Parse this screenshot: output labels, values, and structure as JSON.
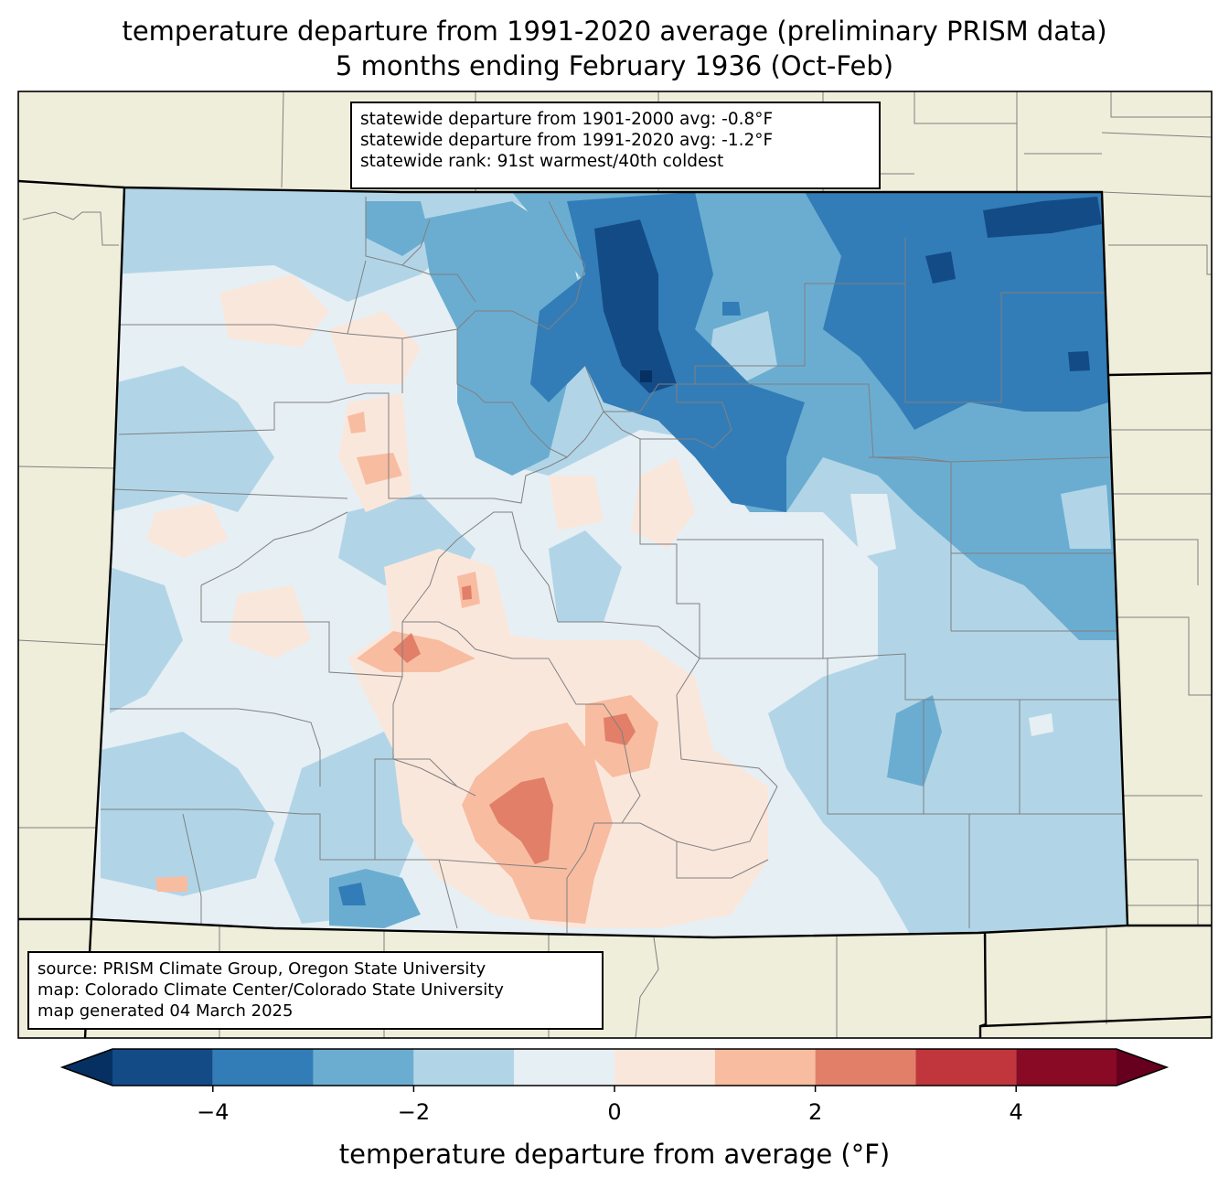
{
  "title": {
    "line1": "temperature departure from 1991-2020 average (preliminary PRISM data)",
    "line2": "5 months ending February 1936 (Oct-Feb)"
  },
  "stats": {
    "line1": "statewide departure from 1901-2000 avg: -0.8°F",
    "line2": "statewide departure from 1991-2020 avg: -1.2°F",
    "line3": "statewide rank: 91st warmest/40th coldest"
  },
  "source": {
    "line1": "source: PRISM Climate Group, Oregon State University",
    "line2": "map: Colorado Climate Center/Colorado State University",
    "line3": "map generated 04 March 2025"
  },
  "colorbar": {
    "label": "temperature departure from average (°F)",
    "ticks": [
      {
        "value": -4,
        "label": "−4"
      },
      {
        "value": -2,
        "label": "−2"
      },
      {
        "value": 0,
        "label": "0"
      },
      {
        "value": 2,
        "label": "2"
      },
      {
        "value": 4,
        "label": "4"
      }
    ],
    "bins": [
      {
        "from": -6,
        "to": -5,
        "color": "#053061"
      },
      {
        "from": -5,
        "to": -4,
        "color": "#134b87"
      },
      {
        "from": -4,
        "to": -3,
        "color": "#327db7"
      },
      {
        "from": -3,
        "to": -2,
        "color": "#6badd1"
      },
      {
        "from": -2,
        "to": -1,
        "color": "#b1d5e7"
      },
      {
        "from": -1,
        "to": 0,
        "color": "#e6eff4"
      },
      {
        "from": 0,
        "to": 1,
        "color": "#fae7dc"
      },
      {
        "from": 1,
        "to": 2,
        "color": "#f8bca1"
      },
      {
        "from": 2,
        "to": 3,
        "color": "#e27f68"
      },
      {
        "from": 3,
        "to": 4,
        "color": "#c0363c"
      },
      {
        "from": 4,
        "to": 5,
        "color": "#880a25"
      },
      {
        "from": 5,
        "to": 6,
        "color": "#67001f"
      }
    ],
    "range": [
      -5,
      5
    ]
  },
  "colors": {
    "land": "#efeedb",
    "county_lines": "#808080",
    "state_lines": "#000000"
  }
}
